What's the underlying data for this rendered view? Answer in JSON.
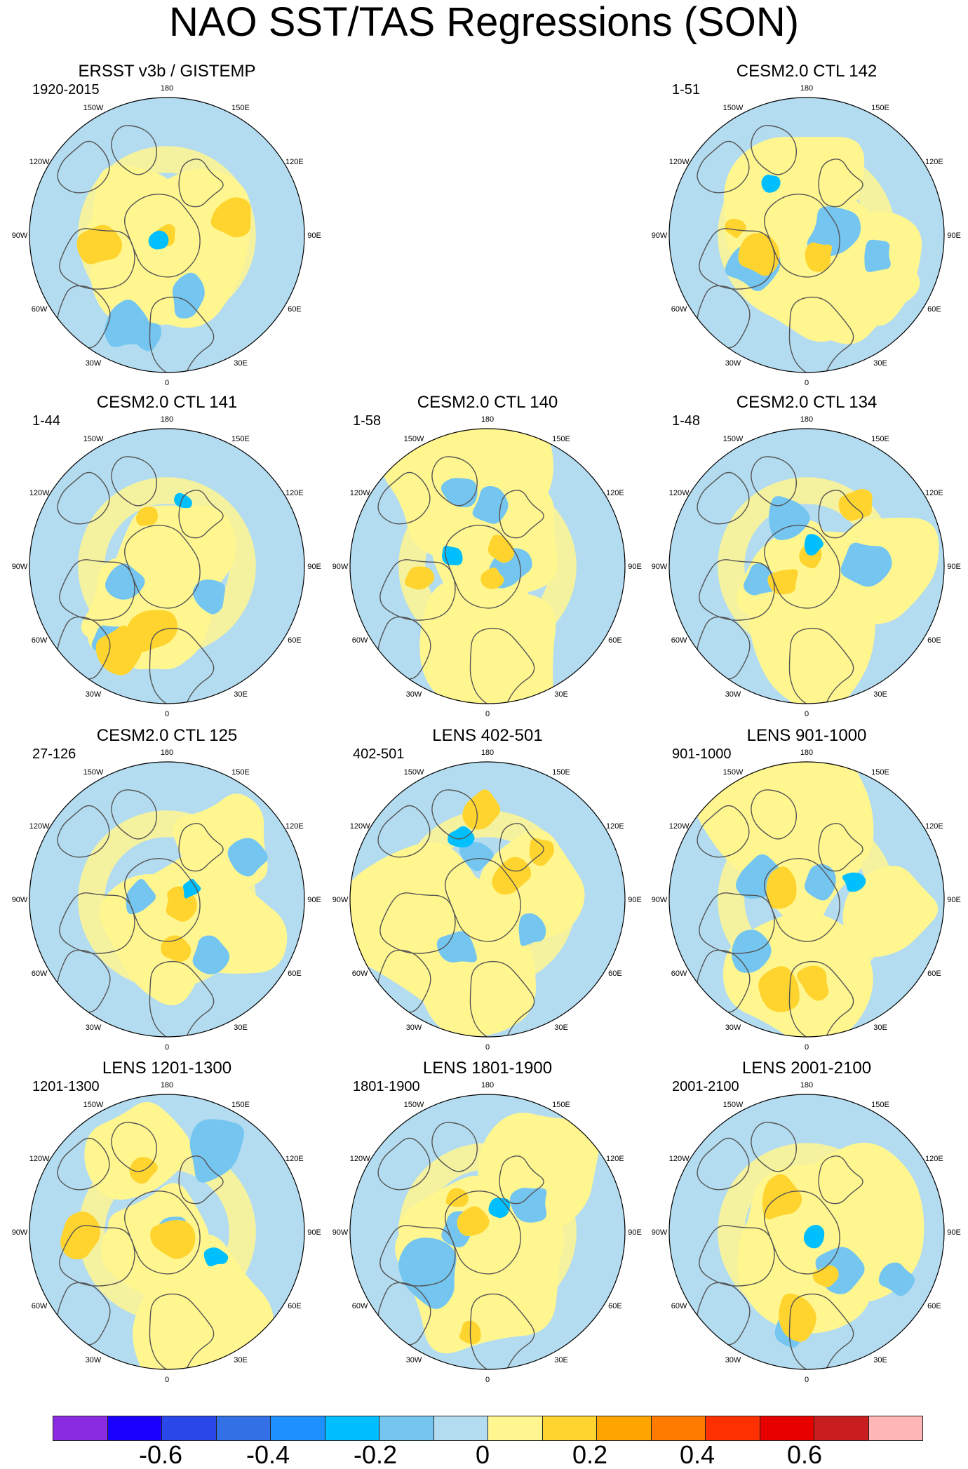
{
  "title": "NAO SST/TAS Regressions (SON)",
  "lon_labels": [
    "180",
    "150E",
    "120E",
    "90E",
    "60E",
    "30E",
    "0",
    "30W",
    "60W",
    "90W",
    "120W",
    "150W"
  ],
  "panels": [
    {
      "title": "ERSST v3b / GISTEMP",
      "period": "1920-2015",
      "seed": 11
    },
    {
      "title": "CESM2.0 CTL 142",
      "period": "1-51",
      "seed": 23
    },
    {
      "title": "CESM2.0 CTL 141",
      "period": "1-44",
      "seed": 37
    },
    {
      "title": "CESM2.0 CTL 140",
      "period": "1-58",
      "seed": 41
    },
    {
      "title": "CESM2.0 CTL 134",
      "period": "1-48",
      "seed": 53
    },
    {
      "title": "CESM2.0 CTL 125",
      "period": "27-126",
      "seed": 67
    },
    {
      "title": "LENS 402-501",
      "period": "402-501",
      "seed": 71
    },
    {
      "title": "LENS 901-1000",
      "period": "901-1000",
      "seed": 83
    },
    {
      "title": "LENS 1201-1300",
      "period": "1201-1300",
      "seed": 97
    },
    {
      "title": "LENS 1801-1900",
      "period": "1801-1900",
      "seed": 101
    },
    {
      "title": "LENS 2001-2100",
      "period": "2001-2100",
      "seed": 113
    }
  ],
  "colorbar": {
    "colors": [
      "#8a2be2",
      "#1a00ff",
      "#2a48ea",
      "#3370e6",
      "#1e90ff",
      "#00bfff",
      "#74c6f1",
      "#b3dcf0",
      "#fff68f",
      "#ffd42e",
      "#ffa500",
      "#ff7b00",
      "#ff3000",
      "#e60000",
      "#c81e1e",
      "#ffb6b6"
    ],
    "tick_labels": [
      "-0.6",
      "-0.4",
      "-0.2",
      "0",
      "0.2",
      "0.4",
      "0.6"
    ]
  }
}
